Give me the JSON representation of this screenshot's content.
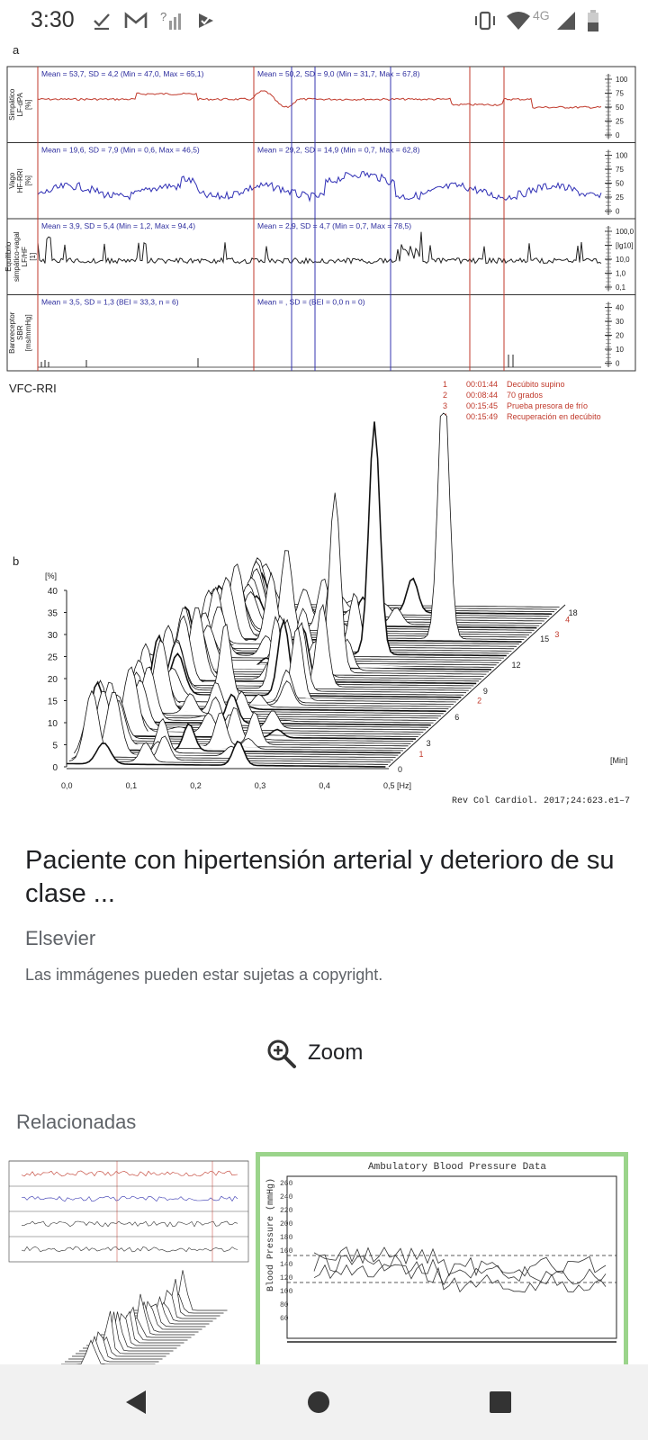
{
  "status_bar": {
    "time": "3:30",
    "network": "4G",
    "icons": [
      "check-icon",
      "gmail-icon",
      "no-signal-icon",
      "play-protect-icon",
      "vibrate-icon",
      "wifi-icon",
      "signal-icon",
      "battery-icon"
    ]
  },
  "figure": {
    "panel_a_label": "a",
    "panel_b_label": "b",
    "rows": [
      {
        "ylabel": [
          "Simpático",
          "LF-dPA",
          "[%]"
        ],
        "stats_left": "Mean = 53,7, SD = 4,2 (Min = 47,0, Max = 65,1)",
        "stats_right": "Mean = 50,2, SD = 9,0 (Min = 31,7, Max = 67,8)",
        "ticks": [
          "100",
          "75",
          "50",
          "25",
          "0"
        ],
        "color": "#c0392b"
      },
      {
        "ylabel": [
          "Vago",
          "HF-RRI",
          "[%]"
        ],
        "stats_left": "Mean = 19,6, SD = 7,9 (Min = 0,6, Max = 46,5)",
        "stats_right": "Mean = 29,2, SD = 14,9 (Min = 0,7, Max = 62,8)",
        "ticks": [
          "100",
          "75",
          "50",
          "25",
          "0"
        ],
        "color": "#2f2fb5"
      },
      {
        "ylabel": [
          "Equilibrio",
          "simpático-vagal",
          "LF/HF",
          "[1]"
        ],
        "stats_left": "Mean = 3,9, SD = 5,4 (Min = 1,2, Max = 94,4)",
        "stats_right": "Mean = 2,9, SD = 4,7 (Min = 0,7, Max = 78,5)",
        "ticks": [
          "100,0",
          "[lg10]",
          "10,0",
          "1,0",
          "0,1"
        ],
        "color": "#222222"
      },
      {
        "ylabel": [
          "Baroreceptor",
          "SBR",
          "[ms/mmHg]"
        ],
        "stats_left": "Mean = 3,5, SD = 1,3 (BEI = 33,3, n = 6)",
        "stats_right": "Mean = , SD = (BEI = 0,0 n = 0)",
        "ticks": [
          "40",
          "30",
          "20",
          "10",
          "0"
        ],
        "color": "#222222"
      }
    ],
    "vfc_label": "VFC-RRI",
    "events": [
      {
        "num": "1",
        "time": "00:01:44",
        "desc": "Decúbito supino"
      },
      {
        "num": "2",
        "time": "00:08:44",
        "desc": "70 grados"
      },
      {
        "num": "3",
        "time": "00:15:45",
        "desc": "Prueba presora de frío"
      },
      {
        "num": "4",
        "time": "00:15:49",
        "desc": "Recuperación en decúbito"
      }
    ],
    "panel_b": {
      "y_unit": "[%]",
      "y_ticks": [
        "40",
        "35",
        "30",
        "25",
        "20",
        "15",
        "10",
        "5",
        "0"
      ],
      "x_ticks": [
        "0,0",
        "0,1",
        "0,2",
        "0,3",
        "0,4",
        "0,5 [Hz]"
      ],
      "z_ticks": [
        "0",
        "3",
        "6",
        "9",
        "12",
        "15",
        "18"
      ],
      "z_unit": "[Min]",
      "event_marks": [
        "1",
        "2",
        "3",
        "4"
      ]
    },
    "citation": "Rev Col Cardiol. 2017;24:623.e1–7"
  },
  "result": {
    "title": "Paciente con hipertensión arterial y deterioro de su clase ...",
    "source": "Elsevier",
    "copyright": "Las immágenes pueden estar sujetas a copyright.",
    "zoom_label": "Zoom"
  },
  "related": {
    "label": "Relacionadas",
    "thumb2_title": "Ambulatory Blood Pressure Data",
    "thumb2_ylabel": "Blood Pressure (mmHg)"
  },
  "nav": [
    "back-icon",
    "home-icon",
    "recents-icon"
  ]
}
